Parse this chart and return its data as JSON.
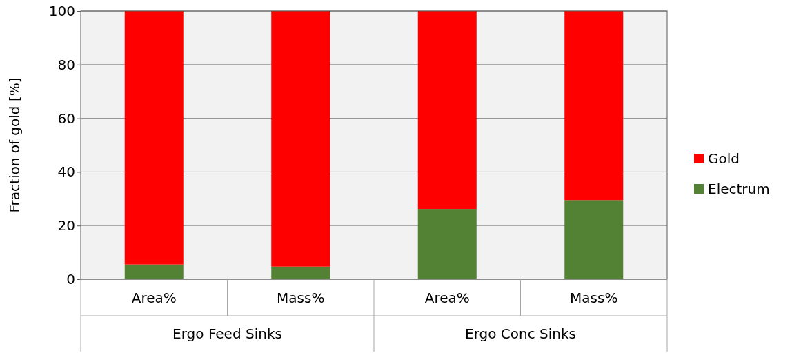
{
  "chart_data": {
    "type": "bar",
    "stacked": true,
    "ylabel": "Fraction of gold [%]",
    "categories": [
      "Area%",
      "Mass%",
      "Area%",
      "Mass%"
    ],
    "series": [
      {
        "name": "Electrum",
        "color": "#548235",
        "values": [
          5.5,
          4.7,
          26.2,
          29.5
        ]
      },
      {
        "name": "Gold",
        "color": "#ff0000",
        "values": [
          94.5,
          95.3,
          73.8,
          70.5
        ]
      }
    ],
    "ylim": [
      0,
      100
    ],
    "yticks": [
      0,
      20,
      40,
      60,
      80,
      100
    ],
    "grid": "y",
    "legend": "right",
    "annotations": [
      "Ergo Feed Sinks",
      "Ergo Conc Sinks"
    ]
  }
}
